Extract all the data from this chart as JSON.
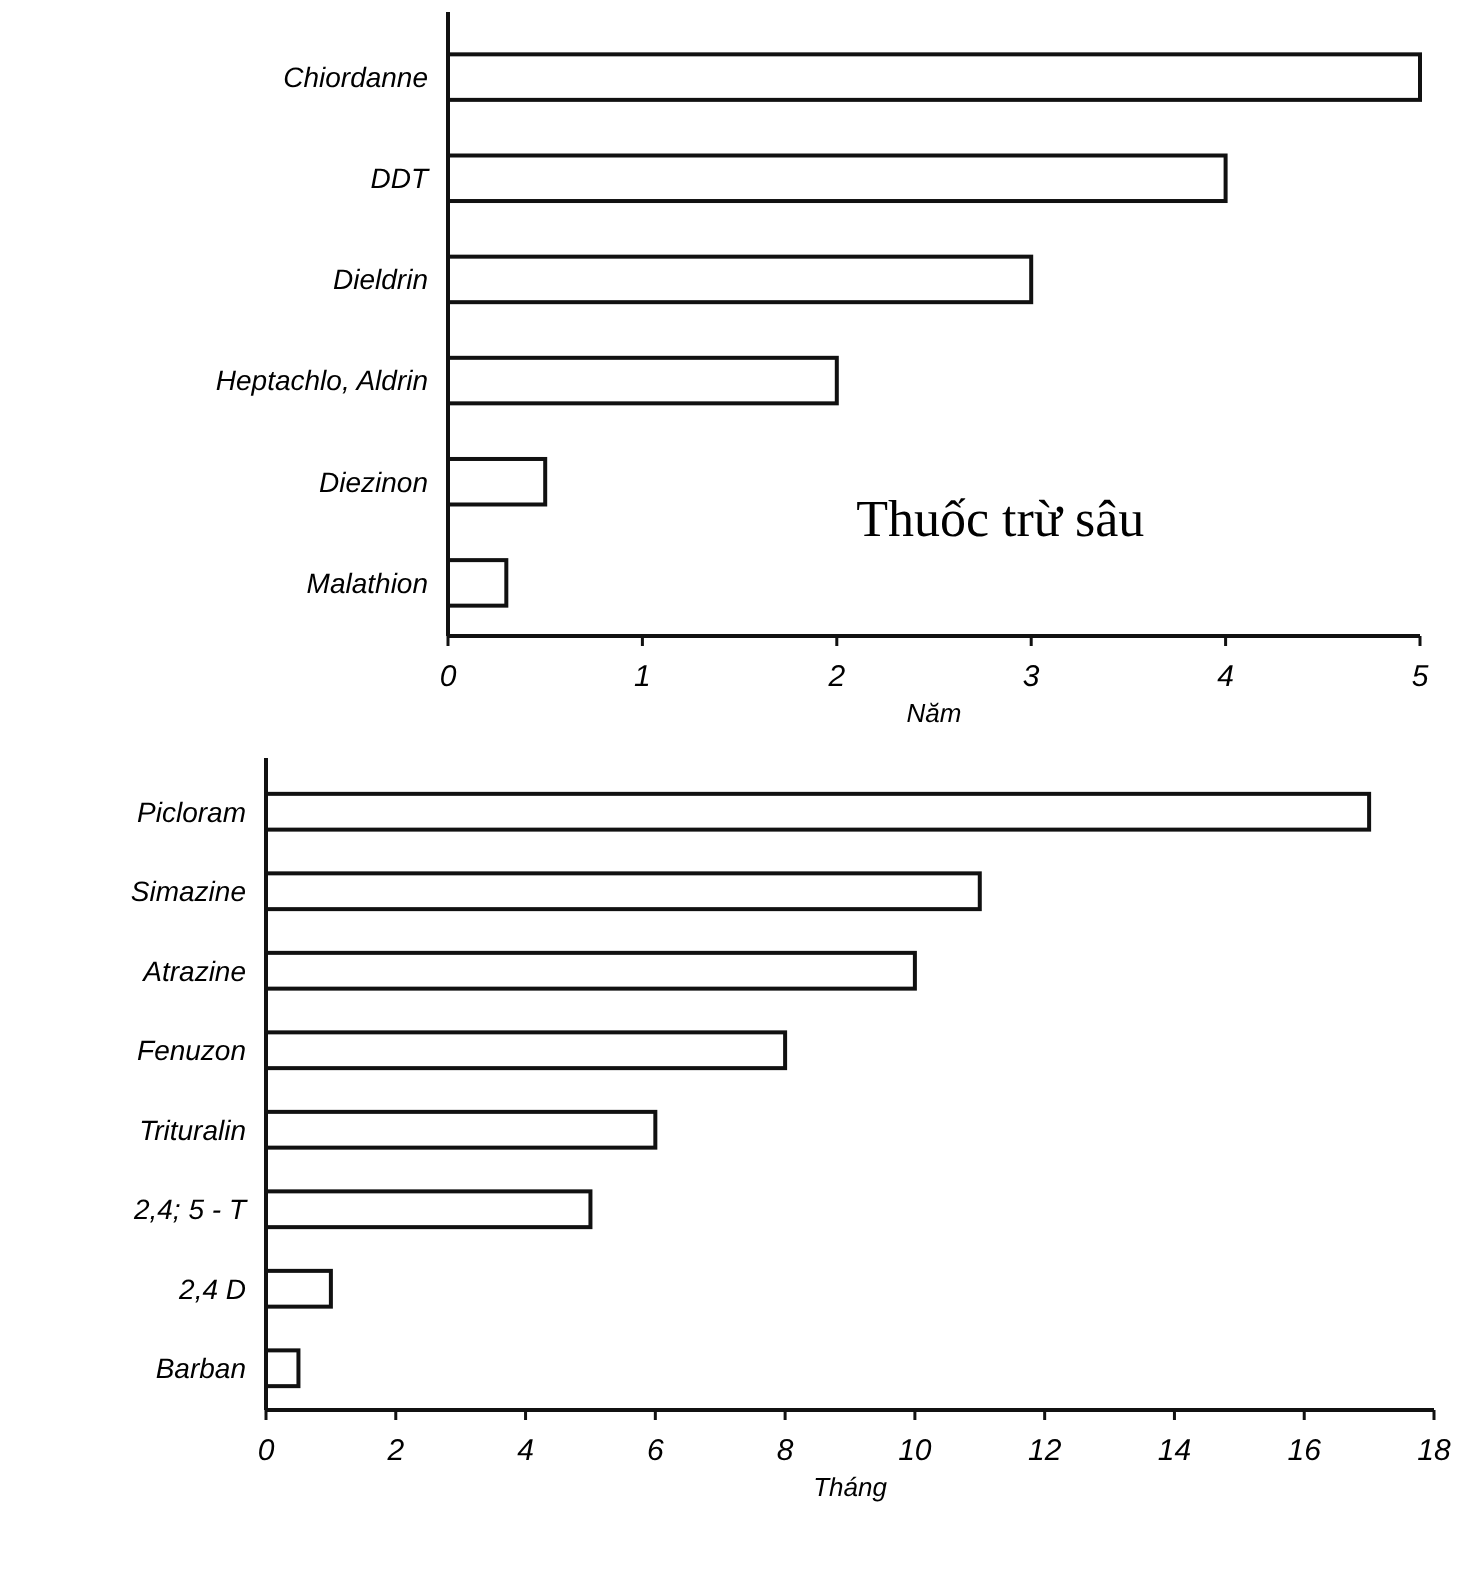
{
  "chart_data": [
    {
      "type": "bar",
      "orientation": "horizontal",
      "categories": [
        "Chiordanne",
        "DDT",
        "Dieldrin",
        "Heptachlo, Aldrin",
        "Diezinon",
        "Malathion"
      ],
      "values": [
        5,
        4,
        3,
        2,
        0.5,
        0.3
      ],
      "color": "#ffffff",
      "xlim": [
        0,
        5
      ],
      "xticks": [
        0,
        1,
        2,
        3,
        4,
        5
      ],
      "xlabel": "Năm",
      "annotations": [
        "Thuốc trừ sâu"
      ],
      "grid": false
    },
    {
      "type": "bar",
      "orientation": "horizontal",
      "categories": [
        "Picloram",
        "Simazine",
        "Atrazine",
        "Fenuzon",
        "Trituralin",
        "2,4; 5 - T",
        "2,4 D",
        "Barban"
      ],
      "values": [
        17,
        11,
        10,
        8,
        6,
        5,
        1,
        0.5
      ],
      "color": "#ffffff",
      "xlim": [
        0,
        18
      ],
      "xticks": [
        0,
        2,
        4,
        6,
        8,
        10,
        12,
        14,
        16,
        18
      ],
      "xlabel": "Tháng",
      "grid": false
    }
  ]
}
